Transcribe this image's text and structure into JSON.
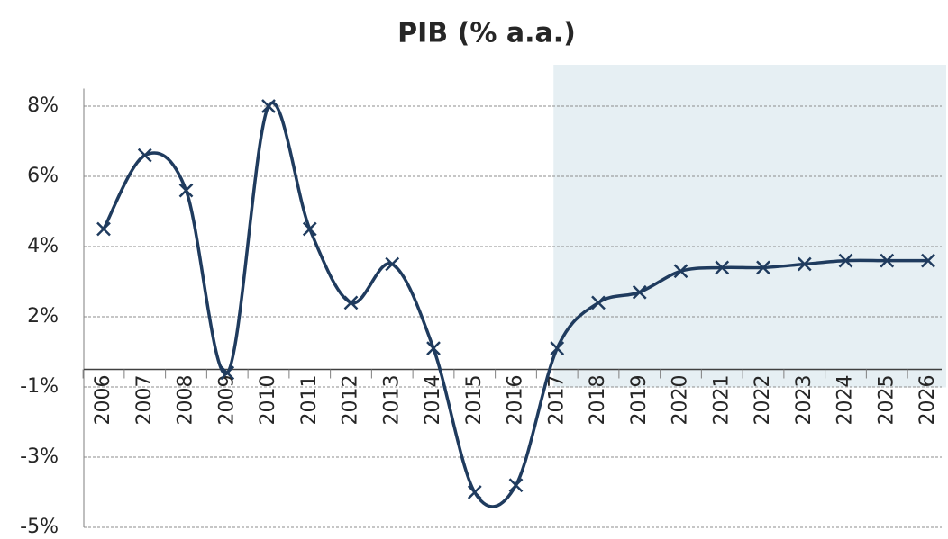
{
  "chart_data": {
    "type": "line",
    "title": "PIB (% a.a.)",
    "categories": [
      "2006",
      "2007",
      "2008",
      "2009",
      "2010",
      "2011",
      "2012",
      "2013",
      "2014",
      "2015",
      "2016",
      "2017",
      "2018",
      "2019",
      "2020",
      "2021",
      "2022",
      "2023",
      "2024",
      "2025",
      "2026"
    ],
    "series": [
      {
        "name": "PIB",
        "color": "#1f3b5e",
        "values": [
          4.0,
          6.1,
          5.1,
          -0.1,
          7.5,
          4.0,
          1.9,
          3.0,
          0.6,
          -3.5,
          -3.3,
          0.6,
          1.9,
          2.2,
          2.8,
          2.9,
          2.9,
          3.0,
          3.1,
          3.1,
          3.1
        ]
      }
    ],
    "ylim": [
      -4.5,
      8
    ],
    "yticks": [
      {
        "value": 7.5,
        "label": "8%"
      },
      {
        "value": 5.5,
        "label": "6%"
      },
      {
        "value": 3.5,
        "label": "4%"
      },
      {
        "value": 1.5,
        "label": "2%"
      },
      {
        "value": -0.5,
        "label": "-1%"
      },
      {
        "value": -2.5,
        "label": "-3%"
      },
      {
        "value": -4.5,
        "label": "-5%"
      }
    ],
    "grid": true,
    "forecast_start": "2017"
  }
}
